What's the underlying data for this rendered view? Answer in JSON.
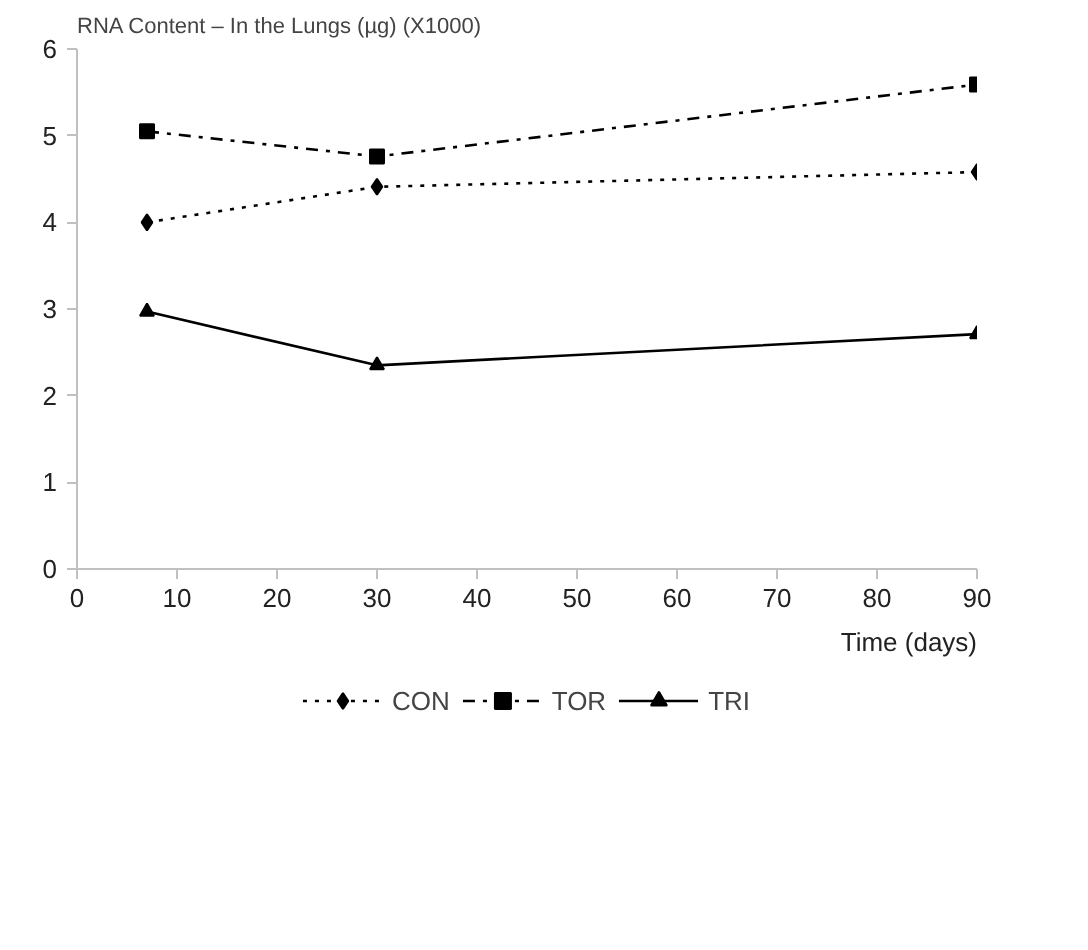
{
  "chart_data": {
    "type": "line",
    "title": "RNA Content – In the Lungs (µg) (X1000)",
    "xlabel": "Time (days)",
    "x": [
      7,
      30,
      90
    ],
    "series": [
      {
        "name": "CON",
        "color": "#000000",
        "values": [
          4.0,
          4.41,
          4.58
        ],
        "marker": "diamond",
        "line_style": "dotted"
      },
      {
        "name": "TOR",
        "color": "#000000",
        "values": [
          5.05,
          4.76,
          5.59
        ],
        "marker": "square",
        "line_style": "dashdot"
      },
      {
        "name": "TRI",
        "color": "#000000",
        "values": [
          2.97,
          2.35,
          2.71
        ],
        "marker": "triangle",
        "line_style": "solid"
      }
    ],
    "xlim": [
      0,
      90
    ],
    "xticks": [
      0,
      10,
      20,
      30,
      40,
      50,
      60,
      70,
      80,
      90
    ],
    "ylim": [
      0,
      6
    ],
    "yticks": [
      0,
      1,
      2,
      3,
      4,
      5,
      6
    ],
    "grid": false,
    "legend": "bottom"
  }
}
